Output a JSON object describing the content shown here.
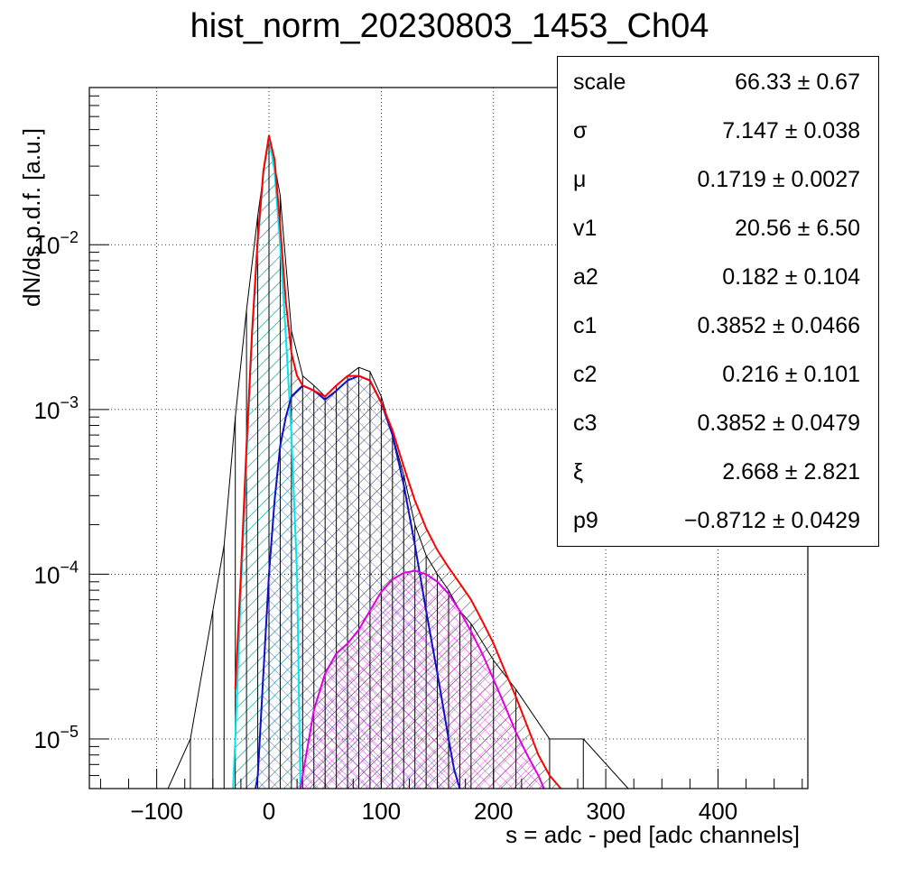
{
  "chart_data": {
    "type": "line",
    "title": "hist_norm_20230803_1453_Ch04",
    "xlabel": "s = adc - ped [adc channels]",
    "ylabel": "dN/ds p.d.f. [a.u.]",
    "xlim": [
      -160,
      480
    ],
    "ylim": [
      5e-06,
      0.09
    ],
    "yscale": "log",
    "grid": true,
    "x_ticks": [
      {
        "value": -100,
        "label": "−100"
      },
      {
        "value": 0,
        "label": "0"
      },
      {
        "value": 100,
        "label": "100"
      },
      {
        "value": 200,
        "label": "200"
      },
      {
        "value": 300,
        "label": "300"
      },
      {
        "value": 400,
        "label": "400"
      }
    ],
    "y_ticks": [
      {
        "value": 1e-05,
        "base": "10",
        "exp": "−5"
      },
      {
        "value": 0.0001,
        "base": "10",
        "exp": "−4"
      },
      {
        "value": 0.001,
        "base": "10",
        "exp": "−3"
      },
      {
        "value": 0.01,
        "base": "10",
        "exp": "−2"
      }
    ],
    "series": [
      {
        "key": "histogram",
        "color": "#000000",
        "x": [
          -120,
          -90,
          -70,
          -50,
          -40,
          -30,
          -20,
          -10,
          0,
          10,
          20,
          30,
          40,
          50,
          60,
          70,
          80,
          90,
          100,
          110,
          120,
          130,
          140,
          150,
          160,
          170,
          180,
          200,
          220,
          250,
          280,
          320,
          380,
          420,
          460
        ],
        "y": [
          5e-06,
          5e-06,
          1e-05,
          6e-05,
          0.00015,
          0.0009,
          0.004,
          0.015,
          0.046,
          0.02,
          0.003,
          0.0016,
          0.0014,
          0.0012,
          0.0014,
          0.0016,
          0.0018,
          0.0017,
          0.0012,
          0.0007,
          0.0004,
          0.0002,
          0.00013,
          0.0001,
          8e-05,
          6e-05,
          5e-05,
          3e-05,
          2e-05,
          1e-05,
          1e-05,
          5e-06,
          5e-06,
          5e-06,
          5e-06
        ]
      },
      {
        "key": "total_fit",
        "color": "#ff0000",
        "x": [
          -30,
          -25,
          -20,
          -15,
          -10,
          -5,
          0,
          5,
          10,
          15,
          20,
          25,
          30,
          40,
          50,
          60,
          70,
          80,
          90,
          100,
          110,
          120,
          130,
          140,
          150,
          160,
          170,
          180,
          190,
          200,
          210,
          220,
          230,
          240,
          250,
          260
        ],
        "y": [
          2e-05,
          0.0001,
          0.0006,
          0.003,
          0.011,
          0.028,
          0.046,
          0.033,
          0.013,
          0.0045,
          0.0022,
          0.0016,
          0.0014,
          0.0013,
          0.0012,
          0.0014,
          0.0016,
          0.0016,
          0.0015,
          0.0011,
          0.00075,
          0.00045,
          0.00028,
          0.00019,
          0.00014,
          0.00011,
          8.8e-05,
          7e-05,
          5.2e-05,
          3.8e-05,
          2.6e-05,
          1.8e-05,
          1.2e-05,
          8e-06,
          6e-06,
          5e-06
        ]
      },
      {
        "key": "pedestal_component",
        "color": "#00e5ee",
        "x": [
          -32,
          -30,
          -25,
          -20,
          -15,
          -10,
          -5,
          0,
          5,
          10,
          15,
          20,
          25,
          28
        ],
        "y": [
          5e-06,
          1e-05,
          8e-05,
          0.0005,
          0.0028,
          0.01,
          0.027,
          0.045,
          0.028,
          0.01,
          0.0028,
          0.0007,
          0.0001,
          5e-06
        ]
      },
      {
        "key": "first_pe_component",
        "color": "#1010c8",
        "x": [
          -12,
          -10,
          -5,
          0,
          5,
          10,
          15,
          20,
          30,
          40,
          50,
          60,
          70,
          80,
          90,
          100,
          110,
          120,
          130,
          140,
          150,
          160,
          165,
          170
        ],
        "y": [
          5e-06,
          6e-06,
          2.5e-05,
          0.0001,
          0.00028,
          0.0006,
          0.0009,
          0.0012,
          0.0014,
          0.0013,
          0.00115,
          0.0013,
          0.0015,
          0.0016,
          0.0015,
          0.0011,
          0.0007,
          0.00035,
          0.00015,
          6e-05,
          2.5e-05,
          1e-05,
          6.5e-06,
          5e-06
        ]
      },
      {
        "key": "second_pe_component",
        "color": "#e000e0",
        "x": [
          28,
          30,
          40,
          50,
          60,
          70,
          80,
          90,
          100,
          110,
          120,
          130,
          140,
          150,
          160,
          170,
          180,
          190,
          200,
          210,
          220,
          230,
          240,
          245
        ],
        "y": [
          5e-06,
          6e-06,
          1.5e-05,
          2.5e-05,
          3.3e-05,
          3.8e-05,
          4.6e-05,
          6e-05,
          7.8e-05,
          9.3e-05,
          0.000102,
          0.000105,
          0.0001,
          9e-05,
          7.6e-05,
          6e-05,
          4.5e-05,
          3.3e-05,
          2.3e-05,
          1.6e-05,
          1.1e-05,
          8e-06,
          6e-06,
          5e-06
        ]
      }
    ]
  },
  "stats": [
    {
      "name": "scale",
      "value": "66.33 ± 0.67"
    },
    {
      "name": "σ",
      "value": "7.147 ± 0.038"
    },
    {
      "name": "μ",
      "value": "0.1719 ± 0.0027"
    },
    {
      "name": "v1",
      "value": "20.56 ± 6.50"
    },
    {
      "name": "a2",
      "value": "0.182 ± 0.104"
    },
    {
      "name": "c1",
      "value": "0.3852 ± 0.0466"
    },
    {
      "name": "c2",
      "value": "0.216 ± 0.101"
    },
    {
      "name": "c3",
      "value": "0.3852 ± 0.0479"
    },
    {
      "name": "ξ",
      "value": "2.668 ± 2.821"
    },
    {
      "name": "p9",
      "value": "−0.8712 ± 0.0429"
    }
  ]
}
